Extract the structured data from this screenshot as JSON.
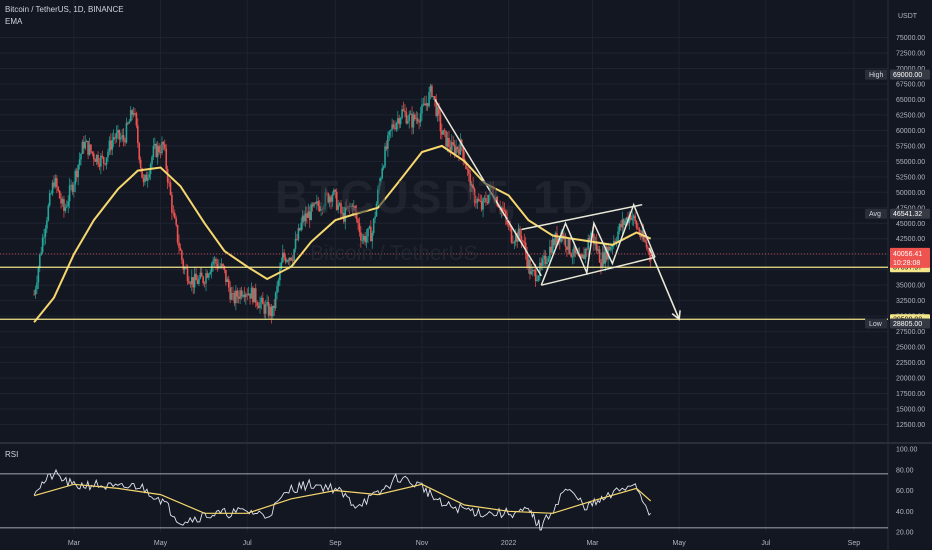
{
  "header": {
    "title": "Bitcoin / TetherUS, 1D, BINANCE",
    "indicator": "EMA",
    "currency": "USDT"
  },
  "watermark": {
    "symbol": "BTCUSDT, 1D",
    "name": "Bitcoin / TetherUS"
  },
  "rsi_panel": {
    "label": "RSI"
  },
  "colors": {
    "background": "#131722",
    "grid": "#1f2330",
    "up": "#26a69a",
    "down": "#ef5350",
    "ema": "#f5d76e",
    "level_line": "#f3e58a",
    "drawing": "#e8e8d8",
    "axis_text": "#b2b5be",
    "rsi_line": "#e0e3eb",
    "rsi_ma": "#f5d76e",
    "current_price_tag": "#ef5350"
  },
  "chart_data": [
    {
      "type": "line",
      "panel": "price",
      "title": "Bitcoin / TetherUS, 1D, BINANCE",
      "y_unit": "USDT",
      "ylim": [
        10000,
        77500
      ],
      "y_ticks": [
        75000,
        72500,
        70000,
        67500,
        65000,
        62500,
        60000,
        57500,
        55000,
        52500,
        50000,
        47500,
        45000,
        42500,
        40000,
        37500,
        35000,
        32500,
        30000,
        27500,
        25000,
        22500,
        20000,
        17500,
        15000,
        12500
      ],
      "y_tick_labels": [
        "75000.00",
        "72500.00",
        "70000.00",
        "67500.00",
        "65000.00",
        "62500.00",
        "60000.00",
        "57500.00",
        "55000.00",
        "52500.00",
        "50000.00",
        "47500.00",
        "45000.00",
        "42500.00",
        "40000.00",
        "37500.00",
        "35000.00",
        "32500.00",
        "30000.00",
        "27500.00",
        "25000.00",
        "22500.00",
        "20000.00",
        "17500.00",
        "15000.00",
        "12500.00"
      ],
      "x_tick_labels": [
        "Mar",
        "May",
        "Jul",
        "Sep",
        "Nov",
        "2022",
        "Mar",
        "May",
        "Jul",
        "Sep"
      ],
      "series": [
        {
          "name": "BTCUSDT",
          "points": [
            [
              "2021-02-01",
              33500
            ],
            [
              "2021-02-08",
              44000
            ],
            [
              "2021-02-15",
              52000
            ],
            [
              "2021-02-22",
              47000
            ],
            [
              "2021-03-01",
              52000
            ],
            [
              "2021-03-08",
              58000
            ],
            [
              "2021-03-15",
              56000
            ],
            [
              "2021-03-22",
              55000
            ],
            [
              "2021-03-29",
              59000
            ],
            [
              "2021-04-05",
              58500
            ],
            [
              "2021-04-12",
              63500
            ],
            [
              "2021-04-19",
              51000
            ],
            [
              "2021-04-26",
              56500
            ],
            [
              "2021-05-03",
              57500
            ],
            [
              "2021-05-10",
              46000
            ],
            [
              "2021-05-17",
              38000
            ],
            [
              "2021-05-24",
              35500
            ],
            [
              "2021-05-31",
              36000
            ],
            [
              "2021-06-07",
              39000
            ],
            [
              "2021-06-14",
              37500
            ],
            [
              "2021-06-21",
              32500
            ],
            [
              "2021-06-28",
              34500
            ],
            [
              "2021-07-05",
              33500
            ],
            [
              "2021-07-12",
              31500
            ],
            [
              "2021-07-19",
              30500
            ],
            [
              "2021-07-26",
              39500
            ],
            [
              "2021-08-02",
              40000
            ],
            [
              "2021-08-09",
              45500
            ],
            [
              "2021-08-16",
              47000
            ],
            [
              "2021-08-23",
              48500
            ],
            [
              "2021-08-30",
              50000
            ],
            [
              "2021-09-06",
              46000
            ],
            [
              "2021-09-13",
              48000
            ],
            [
              "2021-09-20",
              42500
            ],
            [
              "2021-09-27",
              43500
            ],
            [
              "2021-10-04",
              54500
            ],
            [
              "2021-10-11",
              60500
            ],
            [
              "2021-10-18",
              63000
            ],
            [
              "2021-10-25",
              61500
            ],
            [
              "2021-11-01",
              63000
            ],
            [
              "2021-11-08",
              66500
            ],
            [
              "2021-11-15",
              59500
            ],
            [
              "2021-11-22",
              57000
            ],
            [
              "2021-11-29",
              57500
            ],
            [
              "2021-12-06",
              50000
            ],
            [
              "2021-12-13",
              47500
            ],
            [
              "2021-12-20",
              50500
            ],
            [
              "2021-12-27",
              47500
            ],
            [
              "2022-01-03",
              43000
            ],
            [
              "2022-01-10",
              43000
            ],
            [
              "2022-01-17",
              36500
            ],
            [
              "2022-01-24",
              37500
            ],
            [
              "2022-01-31",
              41500
            ],
            [
              "2022-02-07",
              43500
            ],
            [
              "2022-02-14",
              40500
            ],
            [
              "2022-02-21",
              38500
            ],
            [
              "2022-02-28",
              43500
            ],
            [
              "2022-03-07",
              39000
            ],
            [
              "2022-03-14",
              41500
            ],
            [
              "2022-03-21",
              44500
            ],
            [
              "2022-03-28",
              46500
            ],
            [
              "2022-04-04",
              43000
            ],
            [
              "2022-04-11",
              40000
            ]
          ]
        },
        {
          "name": "EMA",
          "points": [
            [
              "2021-02-01",
              29000
            ],
            [
              "2021-02-15",
              33000
            ],
            [
              "2021-03-01",
              40000
            ],
            [
              "2021-03-15",
              45500
            ],
            [
              "2021-04-01",
              50500
            ],
            [
              "2021-04-15",
              53500
            ],
            [
              "2021-05-01",
              54000
            ],
            [
              "2021-05-15",
              51000
            ],
            [
              "2021-06-01",
              45000
            ],
            [
              "2021-06-15",
              40500
            ],
            [
              "2021-07-01",
              38000
            ],
            [
              "2021-07-15",
              36000
            ],
            [
              "2021-08-01",
              38000
            ],
            [
              "2021-08-15",
              42000
            ],
            [
              "2021-09-01",
              45500
            ],
            [
              "2021-09-15",
              46500
            ],
            [
              "2021-10-01",
              47500
            ],
            [
              "2021-10-15",
              51500
            ],
            [
              "2021-11-01",
              56500
            ],
            [
              "2021-11-15",
              57500
            ],
            [
              "2021-12-01",
              55000
            ],
            [
              "2021-12-15",
              51500
            ],
            [
              "2022-01-01",
              49500
            ],
            [
              "2022-01-15",
              45500
            ],
            [
              "2022-02-01",
              43000
            ],
            [
              "2022-02-15",
              42500
            ],
            [
              "2022-03-01",
              42000
            ],
            [
              "2022-03-15",
              41500
            ],
            [
              "2022-04-01",
              43500
            ],
            [
              "2022-04-11",
              42500
            ]
          ]
        }
      ],
      "horizontal_levels": [
        {
          "value": 37897.97,
          "label": "37897.97"
        },
        {
          "value": 29500.98,
          "label": "29500.98"
        }
      ],
      "price_tags": [
        {
          "name": "High",
          "value": 69000.0,
          "label": "69000.00"
        },
        {
          "name": "Avg",
          "value": 46541.32,
          "label": "46541.32"
        },
        {
          "name": "current",
          "value": 40056.41,
          "label": "40056.41",
          "countdown": "10:28:08"
        },
        {
          "name": "Low",
          "value": 28805.0,
          "label": "28805.00"
        }
      ],
      "drawings": [
        {
          "kind": "trendline",
          "points": [
            [
              "2021-11-10",
              65000
            ],
            [
              "2022-01-24",
              36500
            ]
          ]
        },
        {
          "kind": "channel-upper",
          "points": [
            [
              "2022-01-10",
              44000
            ],
            [
              "2022-04-05",
              48000
            ]
          ]
        },
        {
          "kind": "channel-lower",
          "points": [
            [
              "2022-01-24",
              35000
            ],
            [
              "2022-04-14",
              39500
            ]
          ]
        },
        {
          "kind": "zigzag",
          "points": [
            [
              "2022-01-24",
              35000
            ],
            [
              "2022-02-10",
              45000
            ],
            [
              "2022-02-25",
              37000
            ],
            [
              "2022-03-02",
              45000
            ],
            [
              "2022-03-15",
              38500
            ],
            [
              "2022-03-30",
              48000
            ],
            [
              "2022-04-14",
              39500
            ]
          ]
        },
        {
          "kind": "arrow",
          "points": [
            [
              "2022-04-10",
              41000
            ],
            [
              "2022-05-01",
              29500
            ]
          ]
        }
      ]
    },
    {
      "type": "line",
      "panel": "rsi",
      "title": "RSI",
      "ylim": [
        20,
        100
      ],
      "y_ticks": [
        100,
        80,
        60,
        40,
        20
      ],
      "y_tick_labels": [
        "100.00",
        "80.00",
        "60.00",
        "40.00",
        "20.00"
      ],
      "bands": [
        76,
        24
      ],
      "series": [
        {
          "name": "RSI",
          "points": [
            [
              "2021-02-01",
              60
            ],
            [
              "2021-02-15",
              76
            ],
            [
              "2021-03-01",
              64
            ],
            [
              "2021-03-15",
              66
            ],
            [
              "2021-04-01",
              62
            ],
            [
              "2021-04-15",
              65
            ],
            [
              "2021-05-01",
              52
            ],
            [
              "2021-05-15",
              30
            ],
            [
              "2021-06-01",
              36
            ],
            [
              "2021-06-15",
              38
            ],
            [
              "2021-07-01",
              40
            ],
            [
              "2021-07-15",
              36
            ],
            [
              "2021-08-01",
              62
            ],
            [
              "2021-08-15",
              66
            ],
            [
              "2021-09-01",
              62
            ],
            [
              "2021-09-15",
              46
            ],
            [
              "2021-10-01",
              56
            ],
            [
              "2021-10-15",
              73
            ],
            [
              "2021-11-01",
              64
            ],
            [
              "2021-11-15",
              46
            ],
            [
              "2021-12-01",
              42
            ],
            [
              "2021-12-15",
              38
            ],
            [
              "2022-01-01",
              38
            ],
            [
              "2022-01-15",
              40
            ],
            [
              "2022-01-24",
              24
            ],
            [
              "2022-02-10",
              62
            ],
            [
              "2022-02-25",
              44
            ],
            [
              "2022-03-10",
              52
            ],
            [
              "2022-03-30",
              68
            ],
            [
              "2022-04-11",
              38
            ]
          ]
        },
        {
          "name": "RSI MA",
          "points": [
            [
              "2021-02-01",
              55
            ],
            [
              "2021-03-01",
              66
            ],
            [
              "2021-04-01",
              62
            ],
            [
              "2021-05-01",
              56
            ],
            [
              "2021-06-01",
              38
            ],
            [
              "2021-07-01",
              38
            ],
            [
              "2021-08-01",
              52
            ],
            [
              "2021-09-01",
              60
            ],
            [
              "2021-10-01",
              56
            ],
            [
              "2021-11-01",
              66
            ],
            [
              "2021-12-01",
              46
            ],
            [
              "2022-01-01",
              40
            ],
            [
              "2022-02-01",
              38
            ],
            [
              "2022-03-01",
              50
            ],
            [
              "2022-04-01",
              62
            ],
            [
              "2022-04-11",
              50
            ]
          ]
        }
      ]
    }
  ]
}
